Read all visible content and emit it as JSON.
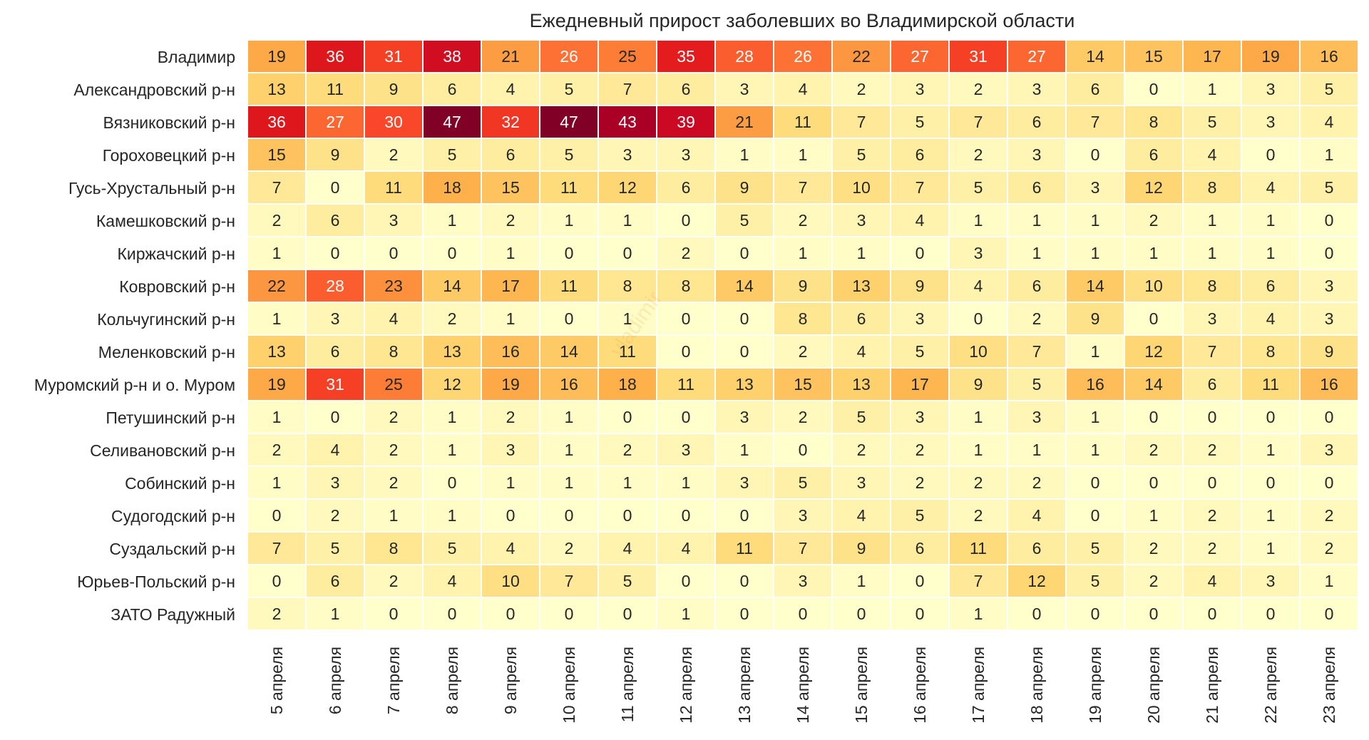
{
  "chart_data": {
    "type": "heatmap",
    "title": "Ежедневный прирост заболевших во Владимирской области",
    "watermark": "vladimir",
    "columns": [
      "5 апреля",
      "6 апреля",
      "7 апреля",
      "8 апреля",
      "9 апреля",
      "10 апреля",
      "11 апреля",
      "12 апреля",
      "13 апреля",
      "14 апреля",
      "15 апреля",
      "16 апреля",
      "17 апреля",
      "18 апреля",
      "19 апреля",
      "20 апреля",
      "21 апреля",
      "22 апреля",
      "23 апреля"
    ],
    "rows": [
      "Владимир",
      "Александровский р-н",
      "Вязниковский р-н",
      "Гороховецкий р-н",
      "Гусь-Хрустальный р-н",
      "Камешковский р-н",
      "Киржачский р-н",
      "Ковровский р-н",
      "Кольчугинский р-н",
      "Меленковский р-н",
      "Муромский р-н и о. Муром",
      "Петушинский р-н",
      "Селивановский р-н",
      "Собинский р-н",
      "Судогодский р-н",
      "Суздальский р-н",
      "Юрьев-Польский р-н",
      "ЗАТО Радужный"
    ],
    "values": [
      [
        19,
        36,
        31,
        38,
        21,
        26,
        25,
        35,
        28,
        26,
        22,
        27,
        31,
        27,
        14,
        15,
        17,
        19,
        16
      ],
      [
        13,
        11,
        9,
        6,
        4,
        5,
        7,
        6,
        3,
        4,
        2,
        3,
        2,
        3,
        6,
        0,
        1,
        3,
        5
      ],
      [
        36,
        27,
        30,
        47,
        32,
        47,
        43,
        39,
        21,
        11,
        7,
        5,
        7,
        6,
        7,
        8,
        5,
        3,
        4
      ],
      [
        15,
        9,
        2,
        5,
        6,
        5,
        3,
        3,
        1,
        1,
        5,
        6,
        2,
        3,
        0,
        6,
        4,
        0,
        1
      ],
      [
        7,
        0,
        11,
        18,
        15,
        11,
        12,
        6,
        9,
        7,
        10,
        7,
        5,
        6,
        3,
        12,
        8,
        4,
        5
      ],
      [
        2,
        6,
        3,
        1,
        2,
        1,
        1,
        0,
        5,
        2,
        3,
        4,
        1,
        1,
        1,
        2,
        1,
        1,
        0
      ],
      [
        1,
        0,
        0,
        0,
        1,
        0,
        0,
        2,
        0,
        1,
        1,
        0,
        3,
        1,
        1,
        1,
        1,
        1,
        0
      ],
      [
        22,
        28,
        23,
        14,
        17,
        11,
        8,
        8,
        14,
        9,
        13,
        9,
        4,
        6,
        14,
        10,
        8,
        6,
        3
      ],
      [
        1,
        3,
        4,
        2,
        1,
        0,
        1,
        0,
        0,
        8,
        6,
        3,
        0,
        2,
        9,
        0,
        3,
        4,
        3
      ],
      [
        13,
        6,
        8,
        13,
        16,
        14,
        11,
        0,
        0,
        2,
        4,
        5,
        10,
        7,
        1,
        12,
        7,
        8,
        9
      ],
      [
        19,
        31,
        25,
        12,
        19,
        16,
        18,
        11,
        13,
        15,
        13,
        17,
        9,
        5,
        16,
        14,
        6,
        11,
        16
      ],
      [
        1,
        0,
        2,
        1,
        2,
        1,
        0,
        0,
        3,
        2,
        5,
        3,
        1,
        3,
        1,
        0,
        0,
        0,
        0
      ],
      [
        2,
        4,
        2,
        1,
        3,
        1,
        2,
        3,
        1,
        0,
        2,
        2,
        1,
        1,
        1,
        2,
        2,
        1,
        3
      ],
      [
        1,
        3,
        2,
        0,
        1,
        1,
        1,
        1,
        3,
        5,
        3,
        2,
        2,
        2,
        0,
        0,
        0,
        0,
        0
      ],
      [
        0,
        2,
        1,
        1,
        0,
        0,
        0,
        0,
        0,
        3,
        4,
        5,
        2,
        4,
        0,
        1,
        2,
        1,
        2
      ],
      [
        7,
        5,
        8,
        5,
        4,
        2,
        4,
        4,
        11,
        7,
        9,
        6,
        11,
        6,
        5,
        2,
        2,
        1,
        2
      ],
      [
        0,
        6,
        2,
        4,
        10,
        7,
        5,
        0,
        0,
        3,
        1,
        0,
        7,
        12,
        5,
        2,
        4,
        3,
        1
      ],
      [
        2,
        1,
        0,
        0,
        0,
        0,
        0,
        1,
        0,
        0,
        0,
        0,
        1,
        0,
        0,
        0,
        0,
        0,
        0
      ]
    ],
    "vmin": 0,
    "vmax": 47,
    "colormap": [
      "#ffffcc",
      "#ffeda0",
      "#fed976",
      "#feb24c",
      "#fd8d3c",
      "#fc4e2a",
      "#e31a1c",
      "#bd0026",
      "#800026"
    ],
    "text_dark": "#262626",
    "text_light": "#ffffff",
    "grid_color": "#ffffff"
  }
}
